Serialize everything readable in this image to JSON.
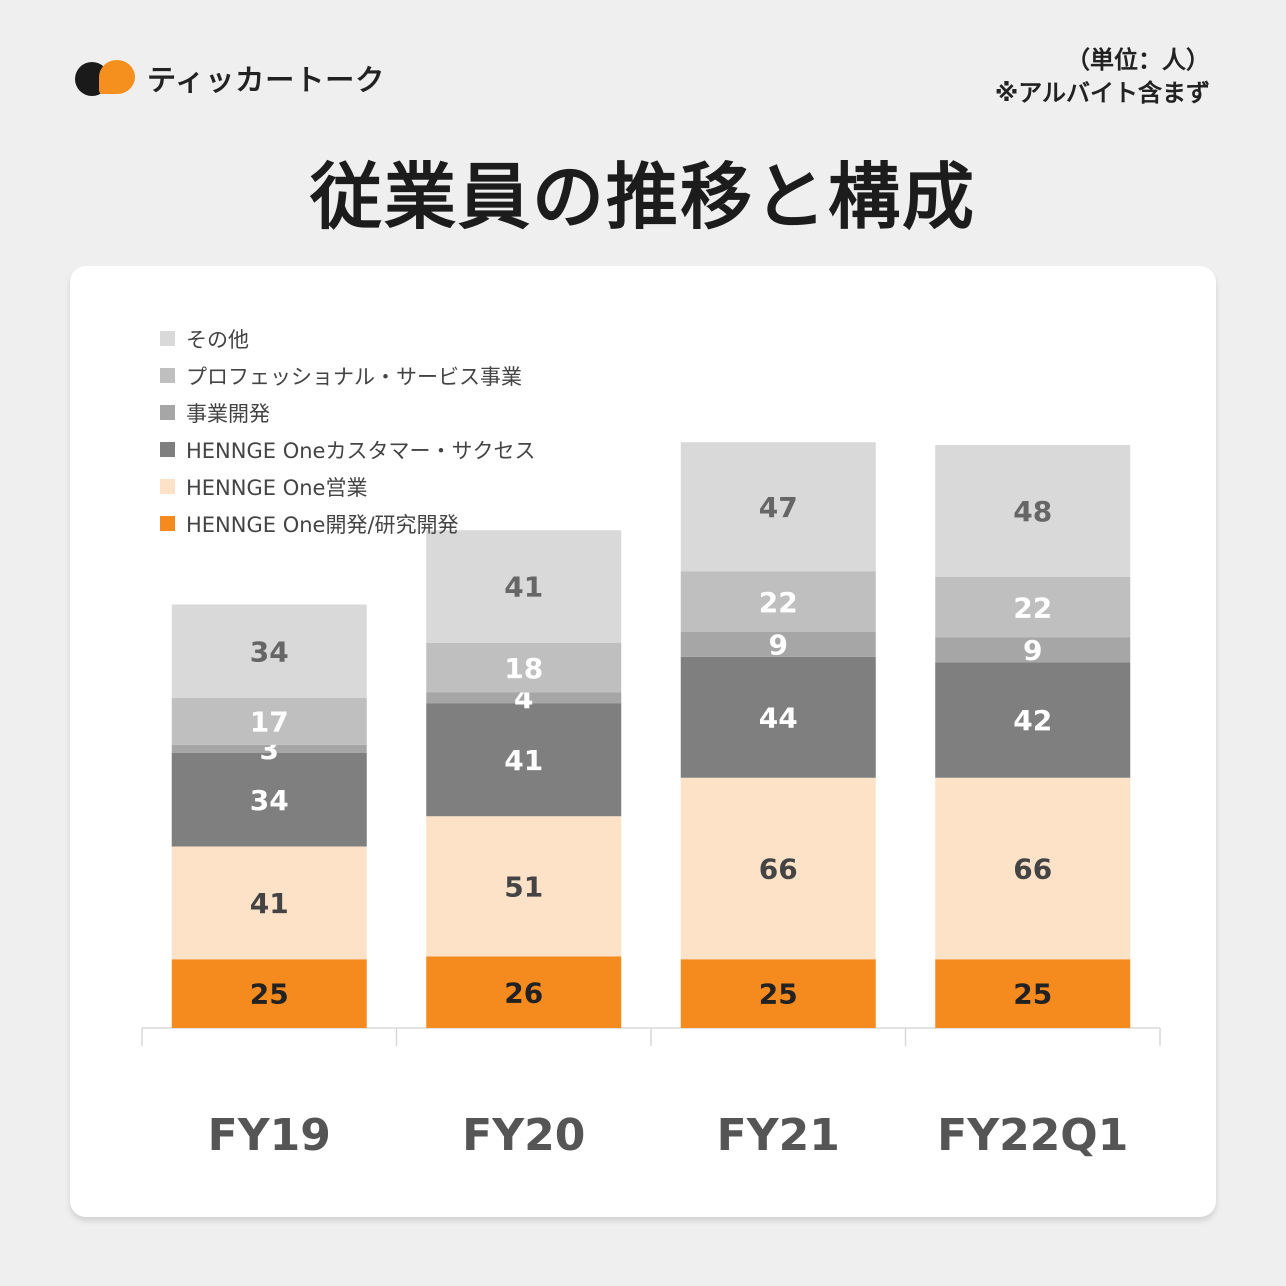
{
  "brand": {
    "name": "ティッカートーク",
    "color_black": "#1a1a1a",
    "color_orange": "#f5901e"
  },
  "unit_note": {
    "line1": "（単位：人）",
    "line2": "※アルバイト含まず"
  },
  "title": "従業員の推移と構成",
  "chart_data": {
    "type": "bar",
    "stacked": true,
    "title": "従業員の推移と構成",
    "categories": [
      "FY19",
      "FY20",
      "FY21",
      "FY22Q1"
    ],
    "series": [
      {
        "name": "HENNGE One開発/研究開発",
        "color": "#f58a1f",
        "label_color": "#222222",
        "values": [
          25,
          26,
          25,
          25
        ]
      },
      {
        "name": "HENNGE One営業",
        "color": "#fde2c7",
        "label_color": "#444444",
        "values": [
          41,
          51,
          66,
          66
        ]
      },
      {
        "name": "HENNGE Oneカスタマー・サクセス",
        "color": "#7f7f7f",
        "label_color": "#ffffff",
        "values": [
          34,
          41,
          44,
          42
        ]
      },
      {
        "name": "事業開発",
        "color": "#a6a6a6",
        "label_color": "#ffffff",
        "values": [
          3,
          4,
          9,
          9
        ]
      },
      {
        "name": "プロフェッショナル・サービス事業",
        "color": "#bfbfbf",
        "label_color": "#ffffff",
        "values": [
          17,
          18,
          22,
          22
        ]
      },
      {
        "name": "その他",
        "color": "#d9d9d9",
        "label_color": "#666666",
        "values": [
          34,
          41,
          47,
          48
        ]
      }
    ],
    "ylim": [
      0,
      250
    ],
    "legend_position": "top-left",
    "legend_order_top_to_bottom": [
      5,
      4,
      3,
      2,
      1,
      0
    ],
    "grid": false
  }
}
